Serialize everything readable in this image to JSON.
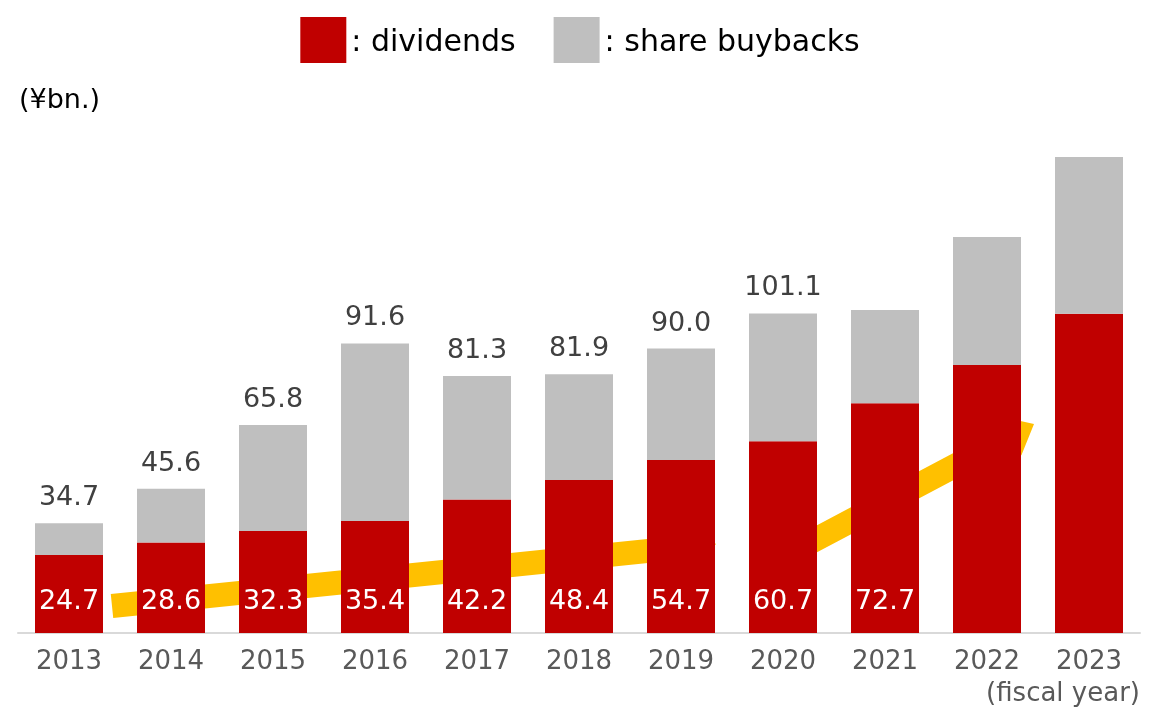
{
  "chart_data": {
    "type": "bar",
    "stacked": true,
    "categories": [
      "2013",
      "2014",
      "2015",
      "2016",
      "2017",
      "2018",
      "2019",
      "2020",
      "2021",
      "2022",
      "2023"
    ],
    "series": [
      {
        "name": ": dividends",
        "color": "#c00000",
        "values": [
          24.7,
          28.6,
          32.3,
          35.4,
          42.2,
          48.4,
          54.7,
          60.7,
          72.7,
          84.8,
          101.0
        ],
        "value_labels": [
          "24.7",
          "28.6",
          "32.3",
          "35.4",
          "42.2",
          "48.4",
          "54.7",
          "60.7",
          "72.7",
          null,
          null
        ]
      },
      {
        "name": ": share buybacks",
        "color": "#bfbfbf",
        "values": [
          10.0,
          17.0,
          33.5,
          56.2,
          39.1,
          33.5,
          35.3,
          40.4,
          29.5,
          40.5,
          49.6
        ]
      }
    ],
    "totals": [
      "34.7",
      "45.6",
      "65.8",
      "91.6",
      "81.3",
      "81.9",
      "90.0",
      "101.1",
      null,
      null,
      null
    ],
    "ylabel": "(¥bn.)",
    "xlabel": "(fiscal year)",
    "legend": "top"
  }
}
